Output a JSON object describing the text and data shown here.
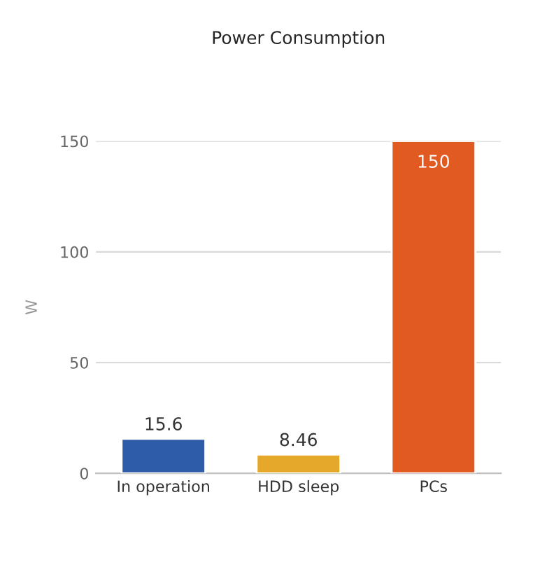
{
  "chart_data": {
    "type": "bar",
    "title": "Power Consumption",
    "ylabel": "W",
    "categories": [
      "In operation",
      "HDD sleep",
      "PCs"
    ],
    "values": [
      15.6,
      8.46,
      150
    ],
    "colors": [
      "#2e5ca8",
      "#e6a82a",
      "#e05a22"
    ],
    "ylim": [
      0,
      150
    ],
    "yticks": [
      0,
      50,
      100,
      150
    ],
    "grid": "y",
    "data_labels": true
  }
}
